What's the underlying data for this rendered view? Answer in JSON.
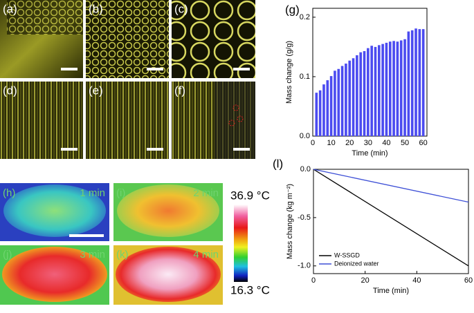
{
  "image_panels": [
    {
      "label": "(a)"
    },
    {
      "label": "(b)"
    },
    {
      "label": "(c)"
    },
    {
      "label": "(d)"
    },
    {
      "label": "(e)"
    },
    {
      "label": "(f)"
    }
  ],
  "thermal_panels": [
    {
      "label": "(h)",
      "time": "1 min"
    },
    {
      "label": "(i)",
      "time": "2 min"
    },
    {
      "label": "(j)",
      "time": "3 min"
    },
    {
      "label": "(k)",
      "time": "4 min"
    }
  ],
  "colorbar": {
    "max_label": "36.9 °C",
    "min_label": "16.3 °C"
  },
  "chart_data": [
    {
      "type": "bar",
      "panel_label": "(g)",
      "x_label": "Time (min)",
      "y_label": "Mass change (g/g)",
      "color": "#4b4bf0",
      "x": [
        2,
        4,
        6,
        8,
        10,
        12,
        14,
        16,
        18,
        20,
        22,
        24,
        26,
        28,
        30,
        32,
        34,
        36,
        38,
        40,
        42,
        44,
        46,
        48,
        50,
        52,
        54,
        56,
        58,
        60
      ],
      "values": [
        0.073,
        0.077,
        0.087,
        0.094,
        0.101,
        0.11,
        0.113,
        0.118,
        0.122,
        0.127,
        0.131,
        0.136,
        0.141,
        0.143,
        0.148,
        0.152,
        0.15,
        0.153,
        0.155,
        0.157,
        0.159,
        0.16,
        0.159,
        0.161,
        0.163,
        0.176,
        0.178,
        0.181,
        0.18,
        0.18
      ],
      "xlim": [
        0,
        62
      ],
      "xticks": [
        0,
        10,
        20,
        30,
        40,
        50,
        60
      ],
      "ylim": [
        0,
        0.215
      ],
      "yticks": [
        {
          "value": 0,
          "label": "0.0"
        },
        0.1,
        0.2
      ]
    },
    {
      "type": "line",
      "panel_label": "(l)",
      "x_label": "Time (min)",
      "y_label": "Mass change (kg m⁻²)",
      "legend": "lower left",
      "series": [
        {
          "name": "W-SSGD",
          "color": "#000000",
          "x": [
            0,
            60
          ],
          "values": [
            0,
            -1.0
          ]
        },
        {
          "name": "Deionized water",
          "color": "#3d4fd6",
          "x": [
            0,
            60
          ],
          "values": [
            0,
            -0.34
          ]
        }
      ],
      "xlim": [
        0,
        60
      ],
      "xticks": [
        0,
        20,
        40,
        60
      ],
      "ylim": [
        -1.08,
        0
      ],
      "yticks": [
        {
          "value": 0,
          "label": "0.0"
        },
        {
          "value": -0.5,
          "label": "-0.5"
        },
        {
          "value": -1.0,
          "label": "-1.0"
        }
      ]
    }
  ]
}
